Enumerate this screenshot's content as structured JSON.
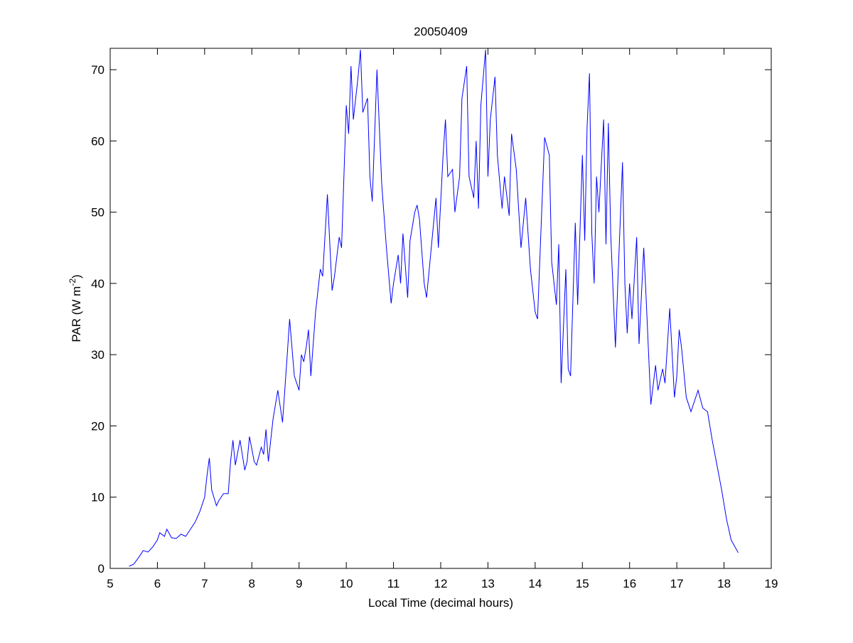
{
  "chart_data": {
    "type": "line",
    "title": "20050409",
    "x_label": "Local Time (decimal hours)",
    "y_label": [
      "PAR (W m",
      "-2",
      ")"
    ],
    "color": "#0000ff",
    "xlim": [
      5,
      19
    ],
    "ylim": [
      0,
      73
    ],
    "xticks": [
      5,
      6,
      7,
      8,
      9,
      10,
      11,
      12,
      13,
      14,
      15,
      16,
      17,
      18,
      19
    ],
    "yticks": [
      0,
      10,
      20,
      30,
      40,
      50,
      60,
      70
    ],
    "x": [
      5.4,
      5.5,
      5.6,
      5.7,
      5.8,
      5.9,
      6.0,
      6.05,
      6.15,
      6.2,
      6.3,
      6.4,
      6.5,
      6.6,
      6.7,
      6.8,
      6.9,
      7.0,
      7.05,
      7.1,
      7.15,
      7.25,
      7.3,
      7.4,
      7.5,
      7.55,
      7.6,
      7.65,
      7.75,
      7.85,
      7.9,
      7.95,
      8.05,
      8.1,
      8.2,
      8.25,
      8.3,
      8.35,
      8.45,
      8.55,
      8.65,
      8.75,
      8.8,
      8.9,
      9.0,
      9.05,
      9.1,
      9.15,
      9.2,
      9.25,
      9.35,
      9.45,
      9.5,
      9.6,
      9.7,
      9.75,
      9.85,
      9.9,
      10.0,
      10.05,
      10.1,
      10.15,
      10.25,
      10.3,
      10.35,
      10.45,
      10.5,
      10.55,
      10.65,
      10.75,
      10.85,
      10.95,
      11.0,
      11.1,
      11.15,
      11.2,
      11.3,
      11.35,
      11.45,
      11.5,
      11.55,
      11.65,
      11.7,
      11.8,
      11.9,
      11.95,
      12.05,
      12.1,
      12.15,
      12.25,
      12.3,
      12.4,
      12.45,
      12.55,
      12.6,
      12.7,
      12.75,
      12.8,
      12.85,
      12.95,
      13.0,
      13.05,
      13.15,
      13.2,
      13.3,
      13.35,
      13.45,
      13.5,
      13.6,
      13.7,
      13.8,
      13.9,
      14.0,
      14.05,
      14.15,
      14.2,
      14.3,
      14.35,
      14.45,
      14.5,
      14.55,
      14.65,
      14.7,
      14.75,
      14.85,
      14.9,
      15.0,
      15.05,
      15.1,
      15.15,
      15.2,
      15.25,
      15.3,
      15.35,
      15.45,
      15.5,
      15.55,
      15.6,
      15.7,
      15.75,
      15.85,
      15.9,
      15.95,
      16.0,
      16.05,
      16.15,
      16.2,
      16.3,
      16.35,
      16.45,
      16.55,
      16.6,
      16.7,
      16.75,
      16.85,
      16.95,
      17.0,
      17.05,
      17.1,
      17.2,
      17.3,
      17.35,
      17.45,
      17.55,
      17.65,
      17.75,
      17.85,
      17.95,
      18.05,
      18.15,
      18.25,
      18.3
    ],
    "values": [
      0.3,
      0.6,
      1.5,
      2.5,
      2.3,
      3,
      4,
      5,
      4.5,
      5.5,
      4.3,
      4.2,
      4.8,
      4.5,
      5.5,
      6.5,
      8,
      10,
      13,
      15.5,
      11,
      8.8,
      9.5,
      10.5,
      10.5,
      15,
      18,
      14.5,
      18,
      13.8,
      15,
      18.5,
      15,
      14.5,
      17,
      16,
      19.5,
      15,
      21,
      25,
      20.5,
      30,
      35,
      27,
      25,
      30,
      29,
      31,
      33.5,
      27,
      36,
      42,
      41,
      52.5,
      39,
      41,
      46.5,
      45,
      65,
      61,
      70.5,
      63,
      69,
      72.8,
      64,
      66,
      55,
      51.5,
      70,
      54,
      45,
      37.2,
      40,
      44,
      40,
      47,
      38,
      46,
      50,
      51,
      49,
      40,
      38,
      45,
      52,
      45,
      58,
      63,
      55,
      56,
      50,
      55,
      66,
      70.5,
      55,
      52,
      60,
      50.5,
      65,
      72.8,
      55,
      63,
      69,
      58,
      50.5,
      55,
      49.5,
      61,
      56,
      45,
      52,
      42,
      36,
      35,
      52,
      60.5,
      58,
      43,
      37,
      45.5,
      26,
      42,
      28,
      27,
      48.5,
      37,
      58,
      46,
      62,
      69.5,
      47,
      40,
      55,
      50,
      63,
      45.5,
      62.5,
      47,
      31,
      40,
      57,
      40,
      33,
      40,
      35,
      46.5,
      31.5,
      45,
      38,
      23,
      28.5,
      25,
      28,
      26,
      36.5,
      24,
      27,
      33.5,
      31,
      24,
      22,
      23,
      25,
      22.5,
      22,
      18,
      14.5,
      11,
      7,
      4,
      2.8,
      2.2
    ],
    "box": true
  }
}
